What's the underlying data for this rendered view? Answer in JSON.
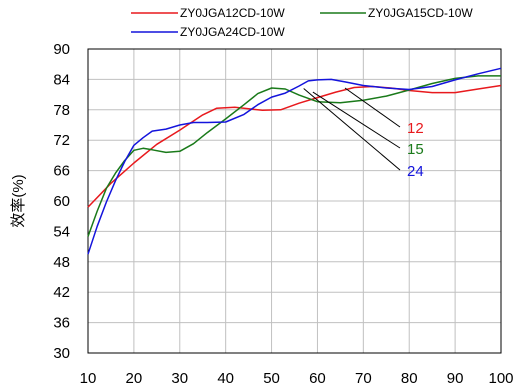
{
  "chart_data": {
    "type": "line",
    "ylabel": "效率(%)",
    "xlabel": "",
    "xlim": [
      10,
      100
    ],
    "ylim": [
      30,
      90
    ],
    "x_ticks": [
      "10",
      "20",
      "30",
      "40",
      "50",
      "60",
      "70",
      "80",
      "90",
      "100"
    ],
    "y_ticks": [
      "30",
      "36",
      "42",
      "48",
      "54",
      "60",
      "66",
      "72",
      "78",
      "84",
      "90"
    ],
    "grid": true,
    "legend_position": "top",
    "series": [
      {
        "name": "ZY0JGA12CD-10W",
        "color": "#e8191d",
        "x": [
          10,
          15,
          20,
          25,
          30,
          35,
          38,
          42,
          45,
          48,
          52,
          56,
          60,
          64,
          68,
          72,
          76,
          80,
          85,
          90,
          95,
          100
        ],
        "y": [
          58.8,
          63.5,
          67.5,
          71.2,
          74.0,
          77.0,
          78.3,
          78.5,
          78.2,
          77.9,
          78.0,
          79.3,
          80.4,
          81.5,
          82.4,
          82.6,
          82.3,
          81.8,
          81.4,
          81.4,
          82.1,
          82.8
        ]
      },
      {
        "name": "ZY0JGA15CD-10W",
        "color": "#1a7a1a",
        "x": [
          10,
          12,
          14,
          16,
          18,
          20,
          22,
          24,
          27,
          30,
          33,
          36,
          40,
          44,
          47,
          50,
          53,
          56,
          60,
          65,
          70,
          75,
          80,
          85,
          90,
          95,
          100
        ],
        "y": [
          53.0,
          58.0,
          62.5,
          65.5,
          68.0,
          70.0,
          70.4,
          70.1,
          69.6,
          69.8,
          71.3,
          73.5,
          76.2,
          79.0,
          81.2,
          82.3,
          82.1,
          80.9,
          79.6,
          79.4,
          79.9,
          80.7,
          81.9,
          83.2,
          84.2,
          84.7,
          84.7
        ]
      },
      {
        "name": "ZY0JGA24CD-10W",
        "color": "#1414dc",
        "x": [
          10,
          12,
          14,
          16,
          18,
          20,
          22,
          24,
          27,
          30,
          33,
          36,
          40,
          44,
          47,
          50,
          53,
          56,
          58,
          60,
          63,
          66,
          70,
          75,
          80,
          85,
          90,
          95,
          100
        ],
        "y": [
          49.5,
          55.0,
          59.8,
          64.0,
          67.8,
          71.0,
          72.5,
          73.8,
          74.2,
          75.0,
          75.5,
          75.5,
          75.6,
          77.1,
          79.0,
          80.5,
          81.3,
          82.7,
          83.7,
          83.9,
          84.0,
          83.5,
          82.8,
          82.3,
          82.0,
          82.6,
          83.9,
          85.1,
          86.2
        ]
      }
    ],
    "annotations": [
      {
        "text": "12",
        "color": "#e8191d",
        "x": 66,
        "y": 82.3
      },
      {
        "text": "15",
        "color": "#1a7a1a",
        "x": 59,
        "y": 81.5
      },
      {
        "text": "24",
        "color": "#1414dc",
        "x": 57,
        "y": 82.2
      }
    ]
  }
}
